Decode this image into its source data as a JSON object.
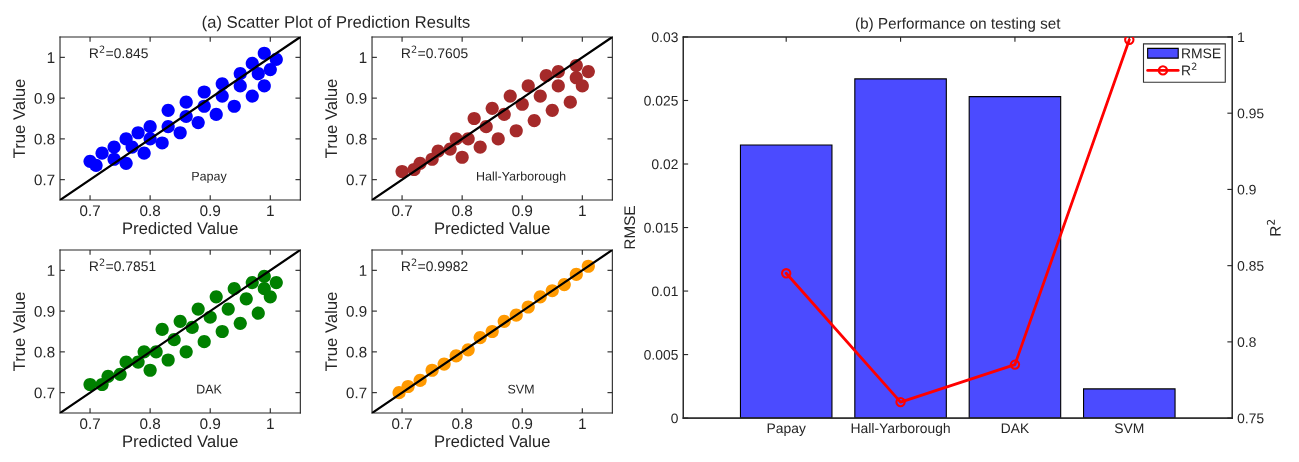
{
  "chart_data": [
    {
      "type": "scatter",
      "title": "(a) Scatter Plot of Prediction Results",
      "xlabel": "Predicted Value",
      "ylabel": "True Value",
      "annotations": [
        "R$^{2}$=0.845",
        "Papay"
      ],
      "xlim": [
        0.65,
        1.05
      ],
      "ylim": [
        0.65,
        1.05
      ],
      "xticks": [
        0.7,
        0.8,
        0.9,
        1
      ],
      "yticks": [
        0.7,
        0.8,
        0.9,
        1
      ],
      "grid": false,
      "marker": "circle",
      "series": [
        {
          "type": "scatter",
          "color": "#0000ff",
          "x": [
            0.7,
            0.72,
            0.74,
            0.76,
            0.78,
            0.8,
            0.83,
            0.86,
            0.89,
            0.92,
            0.95,
            0.97,
            0.99,
            0.71,
            0.74,
            0.77,
            0.8,
            0.83,
            0.86,
            0.89,
            0.92,
            0.95,
            0.98,
            1.01,
            0.76,
            0.79,
            0.82,
            0.85,
            0.88,
            0.91,
            0.94,
            0.97,
            0.99,
            1.0
          ],
          "values": [
            0.745,
            0.765,
            0.78,
            0.8,
            0.815,
            0.83,
            0.87,
            0.89,
            0.915,
            0.935,
            0.96,
            0.985,
            1.01,
            0.735,
            0.75,
            0.78,
            0.8,
            0.83,
            0.855,
            0.88,
            0.905,
            0.93,
            0.96,
            0.995,
            0.74,
            0.765,
            0.79,
            0.815,
            0.84,
            0.86,
            0.88,
            0.905,
            0.93,
            0.97
          ]
        },
        {
          "type": "line",
          "color": "#000000",
          "x": [
            0.65,
            1.05
          ],
          "values": [
            0.65,
            1.05
          ],
          "marker": "none"
        }
      ]
    },
    {
      "type": "scatter",
      "xlabel": "Predicted Value",
      "ylabel": "True Value",
      "annotations": [
        "R$^{2}$=0.7605",
        "Hall-Yarborough"
      ],
      "xlim": [
        0.65,
        1.05
      ],
      "ylim": [
        0.65,
        1.05
      ],
      "xticks": [
        0.7,
        0.8,
        0.9,
        1
      ],
      "yticks": [
        0.7,
        0.8,
        0.9,
        1
      ],
      "grid": false,
      "marker": "circle",
      "series": [
        {
          "type": "scatter",
          "color": "#a52a2a",
          "x": [
            0.7,
            0.73,
            0.76,
            0.79,
            0.82,
            0.85,
            0.88,
            0.91,
            0.94,
            0.96,
            0.99,
            0.72,
            0.75,
            0.78,
            0.81,
            0.84,
            0.87,
            0.9,
            0.93,
            0.96,
            0.99,
            1.01,
            0.8,
            0.83,
            0.86,
            0.89,
            0.92,
            0.95,
            0.98,
            1.0
          ],
          "values": [
            0.72,
            0.74,
            0.77,
            0.8,
            0.85,
            0.875,
            0.905,
            0.93,
            0.955,
            0.965,
            0.98,
            0.725,
            0.75,
            0.775,
            0.8,
            0.83,
            0.86,
            0.885,
            0.905,
            0.93,
            0.95,
            0.965,
            0.755,
            0.78,
            0.8,
            0.82,
            0.845,
            0.87,
            0.89,
            0.93
          ]
        },
        {
          "type": "line",
          "color": "#000000",
          "x": [
            0.65,
            1.05
          ],
          "values": [
            0.65,
            1.05
          ],
          "marker": "none"
        }
      ]
    },
    {
      "type": "scatter",
      "xlabel": "Predicted Value",
      "ylabel": "True Value",
      "annotations": [
        "R$^{2}$=0.7851",
        "DAK"
      ],
      "xlim": [
        0.65,
        1.05
      ],
      "ylim": [
        0.65,
        1.05
      ],
      "xticks": [
        0.7,
        0.8,
        0.9,
        1
      ],
      "yticks": [
        0.7,
        0.8,
        0.9,
        1
      ],
      "grid": false,
      "marker": "circle",
      "series": [
        {
          "type": "scatter",
          "color": "#008000",
          "x": [
            0.7,
            0.73,
            0.76,
            0.79,
            0.82,
            0.85,
            0.88,
            0.91,
            0.94,
            0.97,
            0.99,
            0.72,
            0.75,
            0.78,
            0.81,
            0.84,
            0.87,
            0.9,
            0.93,
            0.96,
            0.99,
            1.01,
            0.8,
            0.83,
            0.86,
            0.89,
            0.92,
            0.95,
            0.98,
            1.0
          ],
          "values": [
            0.72,
            0.74,
            0.775,
            0.8,
            0.855,
            0.875,
            0.905,
            0.935,
            0.955,
            0.97,
            0.985,
            0.72,
            0.745,
            0.775,
            0.8,
            0.83,
            0.86,
            0.885,
            0.905,
            0.93,
            0.955,
            0.97,
            0.755,
            0.78,
            0.8,
            0.825,
            0.85,
            0.87,
            0.895,
            0.935
          ]
        },
        {
          "type": "line",
          "color": "#000000",
          "x": [
            0.65,
            1.05
          ],
          "values": [
            0.65,
            1.05
          ],
          "marker": "none"
        }
      ]
    },
    {
      "type": "scatter",
      "xlabel": "Predicted Value",
      "ylabel": "True Value",
      "annotations": [
        "R$^{2}$=0.9982",
        "SVM"
      ],
      "xlim": [
        0.65,
        1.05
      ],
      "ylim": [
        0.65,
        1.05
      ],
      "xticks": [
        0.7,
        0.8,
        0.9,
        1
      ],
      "yticks": [
        0.7,
        0.8,
        0.9,
        1
      ],
      "grid": false,
      "marker": "circle",
      "series": [
        {
          "type": "scatter",
          "color": "#ff9900",
          "x": [
            0.695,
            0.71,
            0.73,
            0.75,
            0.77,
            0.79,
            0.81,
            0.83,
            0.85,
            0.87,
            0.89,
            0.91,
            0.93,
            0.95,
            0.97,
            0.99,
            1.01
          ],
          "values": [
            0.7,
            0.715,
            0.73,
            0.755,
            0.77,
            0.79,
            0.805,
            0.835,
            0.85,
            0.875,
            0.89,
            0.91,
            0.935,
            0.95,
            0.965,
            0.99,
            1.01
          ]
        },
        {
          "type": "line",
          "color": "#000000",
          "x": [
            0.65,
            1.05
          ],
          "values": [
            0.65,
            1.05
          ],
          "marker": "none"
        }
      ]
    },
    {
      "type": "bar",
      "title": "(b) Performance on testing set",
      "ylabel": "RMSE",
      "y2label": "R$^{2}$",
      "categories": [
        "Papay",
        "Hall-Yarborough",
        "DAK",
        "SVM"
      ],
      "ylim": [
        0,
        0.03
      ],
      "yticks": [
        0,
        0.005,
        0.01,
        0.015,
        0.02,
        0.025,
        0.03
      ],
      "y2lim": [
        0.75,
        1
      ],
      "y2ticks": [
        0.75,
        0.8,
        0.85,
        0.9,
        0.95,
        1
      ],
      "grid": false,
      "legend": "top right",
      "series": [
        {
          "type": "bar",
          "name": "RMSE",
          "color": "#4b4bff",
          "values": [
            0.0215,
            0.0267,
            0.0253,
            0.0023
          ]
        },
        {
          "type": "line",
          "name": "R$^{2}$",
          "color": "#ff0000",
          "axis": "y2",
          "marker": "circle",
          "line_style": "solid",
          "values": [
            0.845,
            0.7605,
            0.7851,
            0.9982
          ]
        }
      ]
    }
  ]
}
